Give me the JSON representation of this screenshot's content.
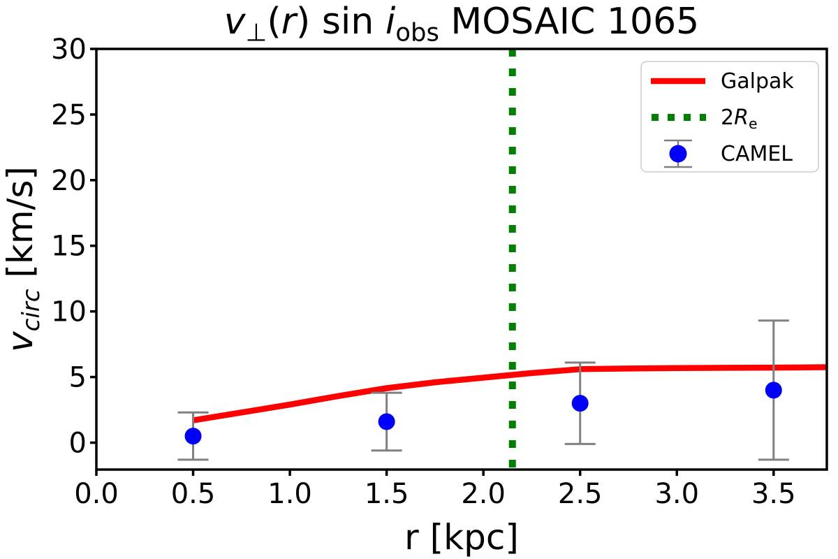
{
  "title": {
    "text": "v⊥(r) sin i_obs MOSAIC 1065",
    "parts": [
      {
        "t": "v",
        "s": "i"
      },
      {
        "t": "⊥",
        "s": "b"
      },
      {
        "t": "(",
        "s": ""
      },
      {
        "t": "r",
        "s": "i"
      },
      {
        "t": ")",
        "s": ""
      },
      {
        "t": " sin ",
        "s": ""
      },
      {
        "t": "i",
        "s": "i"
      },
      {
        "t": "obs",
        "s": "b"
      },
      {
        "t": " MOSAIC 1065",
        "s": ""
      }
    ]
  },
  "axes": {
    "xlabel": {
      "text": "r [kpc]"
    },
    "ylabel": {
      "text": "v_circ [km/s]",
      "parts": [
        {
          "t": "v",
          "s": "i"
        },
        {
          "t": "circ",
          "s": "ib"
        },
        {
          "t": " [km/s]",
          "s": ""
        }
      ]
    }
  },
  "legend": {
    "entries": [
      {
        "label": "Galpak",
        "marker": "line",
        "color": "#ff0000"
      },
      {
        "label": "2R_e",
        "marker": "dotted-line",
        "color": "#008000",
        "parts": [
          {
            "t": "2",
            "s": ""
          },
          {
            "t": "R",
            "s": "i"
          },
          {
            "t": "e",
            "s": "b"
          }
        ]
      },
      {
        "label": "CAMEL",
        "marker": "errorbar-point",
        "color": "#0000ff",
        "errorbar_color": "#808080"
      }
    ]
  },
  "style": {
    "axis_color": "#000000",
    "errorbar_color": "#808080",
    "legend_border_color": "#cccccc",
    "background": "#ffffff",
    "galpak_red": "#ff0000",
    "re_green": "#008000",
    "camel_blue": "#0000ff"
  },
  "chart_data": {
    "type": "line",
    "title": "v⊥(r) sin i_obs MOSAIC 1065",
    "xlabel": "r [kpc]",
    "ylabel": "v_circ [km/s]",
    "xlim": [
      0,
      3.775
    ],
    "ylim": [
      -2.05,
      30
    ],
    "x_ticks": [
      0,
      0.5,
      1.0,
      1.5,
      2.0,
      2.5,
      3.0,
      3.5
    ],
    "x_tick_labels": [
      "0.0",
      "0.5",
      "1.0",
      "1.5",
      "2.0",
      "2.5",
      "3.0",
      "3.5"
    ],
    "y_ticks": [
      0,
      5,
      10,
      15,
      20,
      25,
      30
    ],
    "y_tick_labels": [
      "0",
      "5",
      "10",
      "15",
      "20",
      "25",
      "30"
    ],
    "grid": false,
    "legend_position": "upper right",
    "series": [
      {
        "name": "Galpak",
        "type": "line",
        "color": "#ff0000",
        "linewidth": 8.5,
        "x": [
          0.5,
          0.75,
          1.0,
          1.25,
          1.5,
          1.75,
          2.0,
          2.25,
          2.5,
          2.75,
          3.0,
          3.25,
          3.5,
          3.775
        ],
        "y": [
          1.7,
          2.3,
          2.9,
          3.55,
          4.15,
          4.6,
          4.95,
          5.3,
          5.6,
          5.65,
          5.68,
          5.7,
          5.72,
          5.75
        ]
      },
      {
        "name": "CAMEL",
        "type": "scatter",
        "color": "#0000ff",
        "errorbar_color": "#808080",
        "marker": "circle",
        "marker_size": 24,
        "x": [
          0.5,
          1.5,
          2.5,
          3.5
        ],
        "y": [
          0.5,
          1.6,
          3.0,
          4.0
        ],
        "yerr": [
          1.8,
          2.2,
          3.1,
          5.3
        ]
      },
      {
        "name": "2R_e",
        "type": "vline",
        "color": "#008000",
        "linestyle": "dotted",
        "linewidth": 10,
        "x": 2.15
      }
    ]
  }
}
